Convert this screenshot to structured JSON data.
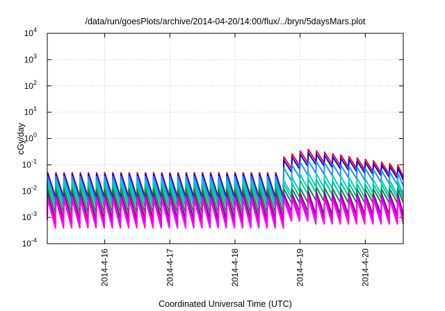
{
  "chart_data": {
    "type": "line",
    "title": "/data/run/goesPlots/archive/2014-04-20/14:00/flux/../bryn/5daysMars.plot",
    "xlabel": "Coordinated Universal Time (UTC)",
    "ylabel": "cGy/day",
    "y_scale": "log",
    "ylim": [
      0.0001,
      10000
    ],
    "xlim": [
      "2014-04-15 02:50",
      "2014-04-20 14:00"
    ],
    "grid": true,
    "y_ticks": [
      {
        "base": "10",
        "exp": "-4"
      },
      {
        "base": "10",
        "exp": "-3"
      },
      {
        "base": "10",
        "exp": "-2"
      },
      {
        "base": "10",
        "exp": "-1"
      },
      {
        "base": "10",
        "exp": "0"
      },
      {
        "base": "10",
        "exp": "1"
      },
      {
        "base": "10",
        "exp": "2"
      },
      {
        "base": "10",
        "exp": "3"
      },
      {
        "base": "10",
        "exp": "4"
      }
    ],
    "x_ticks": [
      "2014-4-16",
      "2014-4-17",
      "2014-4-18",
      "2014-4-19",
      "2014-4-20"
    ],
    "sawtooth_period_hours": 3,
    "event_start": "2014-04-18 18:00",
    "event_peak": "2014-04-19 02:00",
    "series": [
      {
        "color": "#ff0000",
        "quiet_peak": 0.05,
        "quiet_trough": 0.006,
        "event_peak": 0.4,
        "event_end": 0.09,
        "event_trough_ratio": 0.35
      },
      {
        "color": "#0000ff",
        "quiet_peak": 0.045,
        "quiet_trough": 0.005,
        "event_peak": 0.3,
        "event_end": 0.07,
        "event_trough_ratio": 0.35
      },
      {
        "color": "#1e90ff",
        "quiet_peak": 0.035,
        "quiet_trough": 0.004,
        "event_peak": 0.15,
        "event_end": 0.045,
        "event_trough_ratio": 0.33
      },
      {
        "color": "#00ced1",
        "quiet_peak": 0.025,
        "quiet_trough": 0.003,
        "event_peak": 0.05,
        "event_end": 0.02,
        "event_trough_ratio": 0.3
      },
      {
        "color": "#00c78c",
        "quiet_peak": 0.018,
        "quiet_trough": 0.0025,
        "event_peak": 0.03,
        "event_end": 0.012,
        "event_trough_ratio": 0.3
      },
      {
        "color": "#008b45",
        "quiet_peak": 0.012,
        "quiet_trough": 0.0015,
        "event_peak": 0.015,
        "event_end": 0.007,
        "event_trough_ratio": 0.3
      },
      {
        "color": "#8b008b",
        "quiet_peak": 0.008,
        "quiet_trough": 0.0009,
        "event_peak": 0.01,
        "event_end": 0.005,
        "event_trough_ratio": 0.25
      },
      {
        "color": "#d100d1",
        "quiet_peak": 0.006,
        "quiet_trough": 0.0006,
        "event_peak": 0.007,
        "event_end": 0.004,
        "event_trough_ratio": 0.22
      },
      {
        "color": "#ff00ff",
        "quiet_peak": 0.005,
        "quiet_trough": 0.0004,
        "event_peak": 0.006,
        "event_end": 0.003,
        "event_trough_ratio": 0.2
      }
    ]
  }
}
